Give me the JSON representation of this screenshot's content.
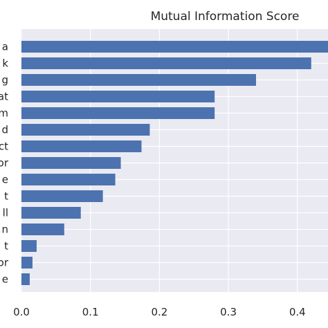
{
  "chart_data": {
    "type": "bar",
    "orientation": "horizontal",
    "title": "Mutual Information Score",
    "xlabel": "",
    "ylabel": "",
    "xlim": [
      0.0,
      0.45
    ],
    "xticks": [
      "0.0",
      "0.1",
      "0.2",
      "0.3",
      "0.4"
    ],
    "xtick_values": [
      0.0,
      0.1,
      0.2,
      0.3,
      0.4
    ],
    "grid": true,
    "background": "#EAEAF2",
    "bar_color": "#4C72B0",
    "categories": [
      "a",
      "k",
      "g",
      "at",
      "m",
      "d",
      "ct",
      "or",
      "e",
      "t",
      "ll",
      "n",
      "t",
      "or",
      "e"
    ],
    "values": [
      0.452,
      0.42,
      0.34,
      0.28,
      0.28,
      0.186,
      0.174,
      0.144,
      0.136,
      0.118,
      0.086,
      0.062,
      0.022,
      0.016,
      0.012
    ]
  }
}
